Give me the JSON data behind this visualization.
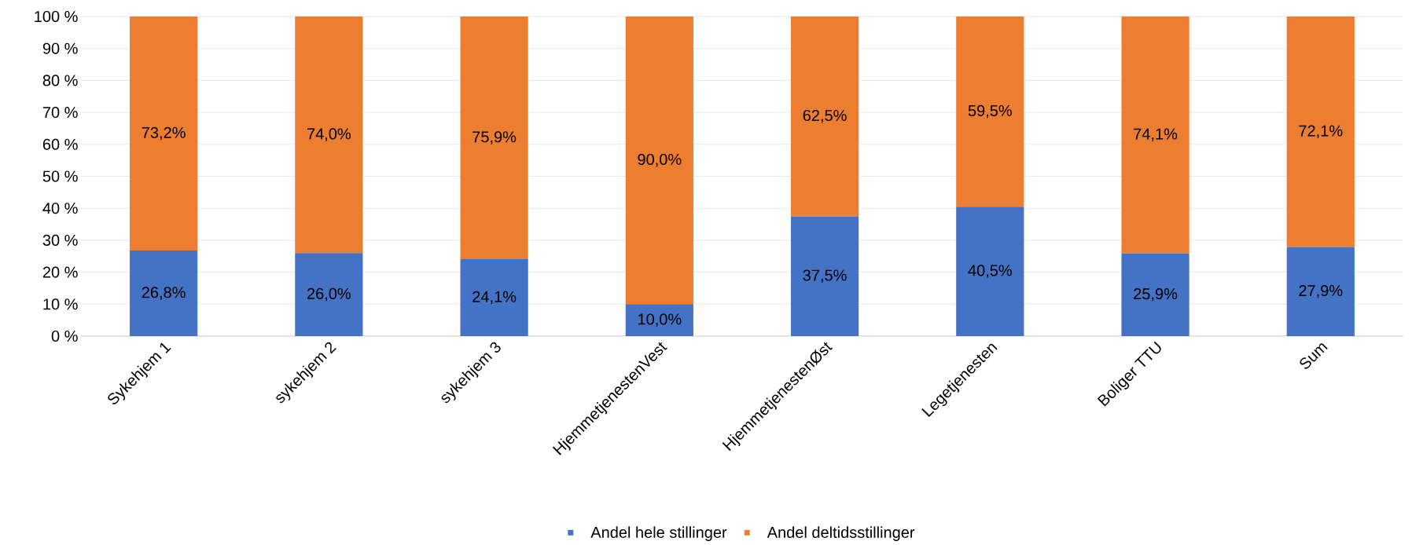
{
  "chart_data": {
    "type": "bar",
    "stacked": true,
    "categories": [
      "Sykehjem 1",
      "sykehjem 2",
      "sykehjem 3",
      "HjemmetjenestenVest",
      "HjemmetjenestenØst",
      "Legetjenesten",
      "Boliger TTU",
      "Sum"
    ],
    "series": [
      {
        "name": "Andel hele stillinger",
        "color": "#4472c4",
        "values": [
          26.8,
          26.0,
          24.1,
          10.0,
          37.5,
          40.5,
          25.9,
          27.9
        ],
        "value_labels": [
          "26,8%",
          "26,0%",
          "24,1%",
          "10,0%",
          "37,5%",
          "40,5%",
          "25,9%",
          "27,9%"
        ]
      },
      {
        "name": "Andel deltidsstillinger",
        "color": "#ed7d31",
        "values": [
          73.2,
          74.0,
          75.9,
          90.0,
          62.5,
          59.5,
          74.1,
          72.1
        ],
        "value_labels": [
          "73,2%",
          "74,0%",
          "75,9%",
          "90,0%",
          "62,5%",
          "59,5%",
          "74,1%",
          "72,1%"
        ]
      }
    ],
    "ylim": [
      0,
      100
    ],
    "yticks": [
      {
        "value": 0,
        "label": "0 %"
      },
      {
        "value": 10,
        "label": "10 %"
      },
      {
        "value": 20,
        "label": "20 %"
      },
      {
        "value": 30,
        "label": "30 %"
      },
      {
        "value": 40,
        "label": "40 %"
      },
      {
        "value": 50,
        "label": "50 %"
      },
      {
        "value": 60,
        "label": "60 %"
      },
      {
        "value": 70,
        "label": "70 %"
      },
      {
        "value": 80,
        "label": "80 %"
      },
      {
        "value": 90,
        "label": "90 %"
      },
      {
        "value": 100,
        "label": "100 %"
      }
    ],
    "grid": "y",
    "legend": "bottom"
  }
}
